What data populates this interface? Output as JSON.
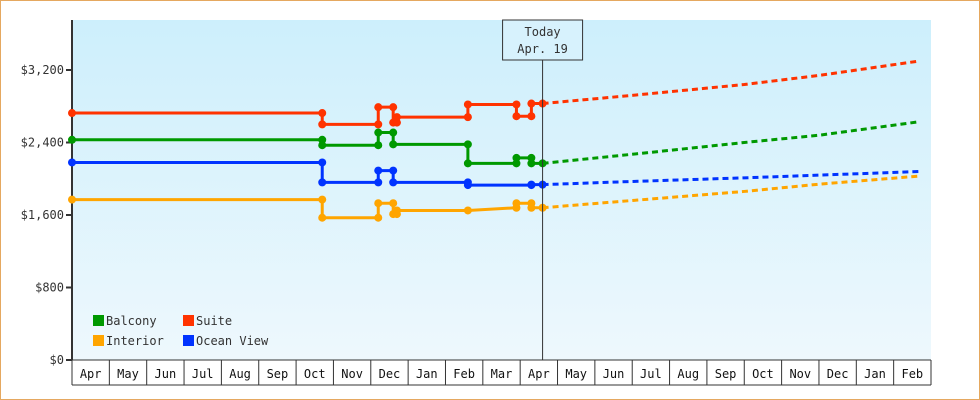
{
  "chart_data": {
    "type": "line",
    "title": "",
    "xlabel": "",
    "ylabel": "",
    "ylim": [
      0,
      3800
    ],
    "y_ticks": [
      {
        "value": 0,
        "label": "$0"
      },
      {
        "value": 800,
        "label": "$800"
      },
      {
        "value": 1600,
        "label": "$1,600"
      },
      {
        "value": 2400,
        "label": "$2,400"
      },
      {
        "value": 3200,
        "label": "$3,200"
      }
    ],
    "x_months": [
      "Apr",
      "May",
      "Jun",
      "Jul",
      "Aug",
      "Sep",
      "Oct",
      "Nov",
      "Dec",
      "Jan",
      "Feb",
      "Mar",
      "Apr",
      "May",
      "Jun",
      "Jul",
      "Aug",
      "Sep",
      "Oct",
      "Nov",
      "Dec",
      "Jan",
      "Feb"
    ],
    "today_marker": {
      "line1": "Today",
      "line2": "Apr. 19",
      "month_index": 12.6
    },
    "legend": [
      {
        "name": "Balcony",
        "color": "#009900"
      },
      {
        "name": "Suite",
        "color": "#ff3300"
      },
      {
        "name": "Interior",
        "color": "#ffa500"
      },
      {
        "name": "Ocean View",
        "color": "#0033ff"
      }
    ],
    "legend_position": "lower-left",
    "grid": false,
    "series": [
      {
        "name": "Suite",
        "color": "#ff3300",
        "history": [
          [
            0.0,
            2725
          ],
          [
            6.7,
            2725
          ],
          [
            6.7,
            2600
          ],
          [
            8.2,
            2600
          ],
          [
            8.2,
            2790
          ],
          [
            8.6,
            2790
          ],
          [
            8.6,
            2620
          ],
          [
            8.7,
            2620
          ],
          [
            8.7,
            2680
          ],
          [
            10.6,
            2680
          ],
          [
            10.6,
            2820
          ],
          [
            11.9,
            2820
          ],
          [
            11.9,
            2690
          ],
          [
            12.3,
            2690
          ],
          [
            12.3,
            2830
          ],
          [
            12.6,
            2830
          ]
        ],
        "forecast": [
          [
            12.6,
            2830
          ],
          [
            15,
            2920
          ],
          [
            18,
            3040
          ],
          [
            20,
            3140
          ],
          [
            22.7,
            3300
          ]
        ]
      },
      {
        "name": "Balcony",
        "color": "#009900",
        "history": [
          [
            0.0,
            2430
          ],
          [
            6.7,
            2430
          ],
          [
            6.7,
            2370
          ],
          [
            8.2,
            2370
          ],
          [
            8.2,
            2510
          ],
          [
            8.6,
            2510
          ],
          [
            8.6,
            2380
          ],
          [
            10.6,
            2380
          ],
          [
            10.6,
            2170
          ],
          [
            11.9,
            2170
          ],
          [
            11.9,
            2230
          ],
          [
            12.3,
            2230
          ],
          [
            12.3,
            2170
          ],
          [
            12.6,
            2170
          ]
        ],
        "forecast": [
          [
            12.6,
            2170
          ],
          [
            15,
            2270
          ],
          [
            18,
            2400
          ],
          [
            20,
            2480
          ],
          [
            22.7,
            2630
          ]
        ]
      },
      {
        "name": "Ocean View",
        "color": "#0033ff",
        "history": [
          [
            0.0,
            2180
          ],
          [
            6.7,
            2180
          ],
          [
            6.7,
            1960
          ],
          [
            8.2,
            1960
          ],
          [
            8.2,
            2090
          ],
          [
            8.6,
            2090
          ],
          [
            8.6,
            1960
          ],
          [
            10.6,
            1960
          ],
          [
            10.6,
            1930
          ],
          [
            12.3,
            1930
          ],
          [
            12.3,
            1935
          ],
          [
            12.6,
            1935
          ]
        ],
        "forecast": [
          [
            12.6,
            1935
          ],
          [
            15,
            1970
          ],
          [
            18,
            2010
          ],
          [
            20,
            2040
          ],
          [
            22.7,
            2080
          ]
        ]
      },
      {
        "name": "Interior",
        "color": "#ffa500",
        "history": [
          [
            0.0,
            1770
          ],
          [
            6.7,
            1770
          ],
          [
            6.7,
            1570
          ],
          [
            8.2,
            1570
          ],
          [
            8.2,
            1730
          ],
          [
            8.6,
            1730
          ],
          [
            8.6,
            1610
          ],
          [
            8.7,
            1610
          ],
          [
            8.7,
            1650
          ],
          [
            10.6,
            1650
          ],
          [
            11.9,
            1680
          ],
          [
            11.9,
            1730
          ],
          [
            12.3,
            1730
          ],
          [
            12.3,
            1680
          ],
          [
            12.6,
            1680
          ]
        ],
        "forecast": [
          [
            12.6,
            1680
          ],
          [
            15,
            1760
          ],
          [
            18,
            1860
          ],
          [
            20,
            1940
          ],
          [
            22.7,
            2030
          ]
        ]
      }
    ]
  }
}
